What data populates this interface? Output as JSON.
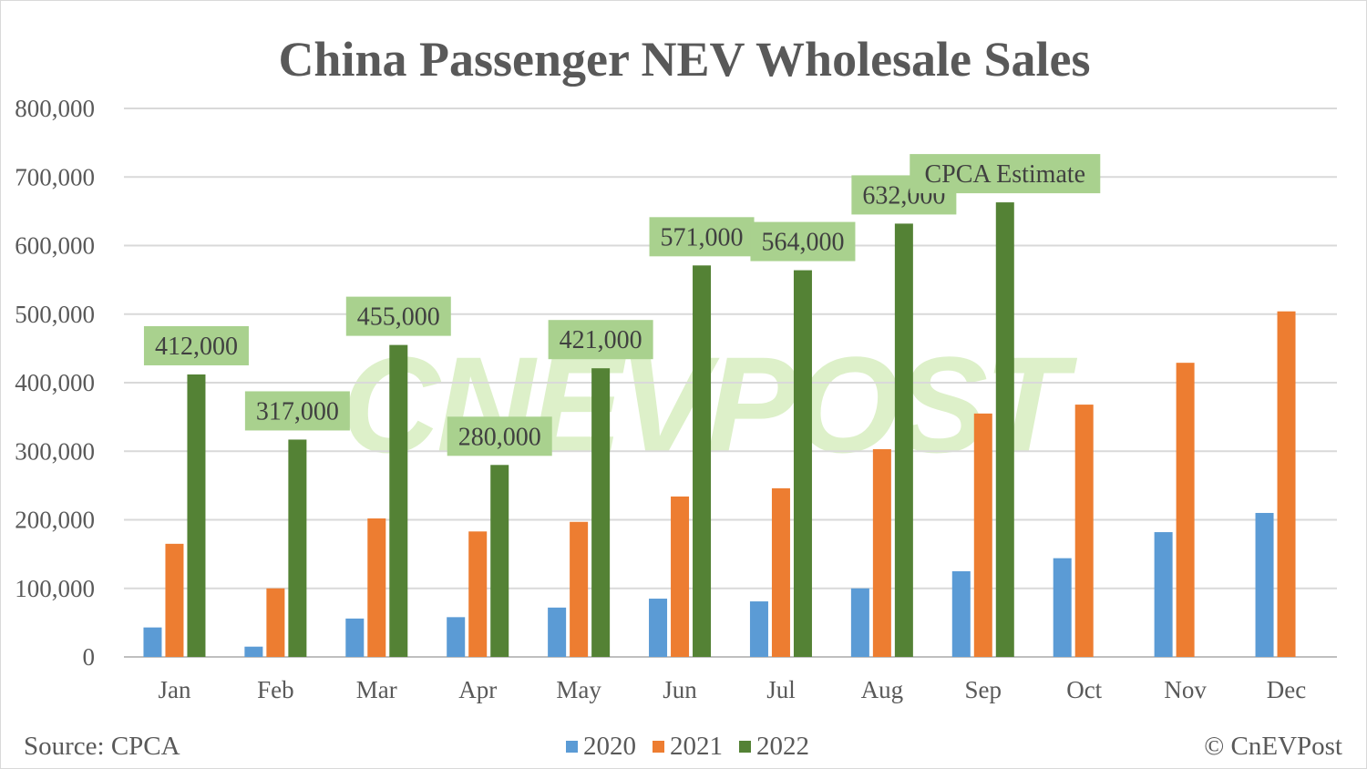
{
  "chart_data": {
    "type": "bar",
    "title": "China Passenger NEV Wholesale Sales",
    "categories": [
      "Jan",
      "Feb",
      "Mar",
      "Apr",
      "May",
      "Jun",
      "Jul",
      "Aug",
      "Sep",
      "Oct",
      "Nov",
      "Dec"
    ],
    "ylim": [
      0,
      800000
    ],
    "yticks": [
      "0",
      "100,000",
      "200,000",
      "300,000",
      "400,000",
      "500,000",
      "600,000",
      "700,000",
      "800,000"
    ],
    "grid": true,
    "legend_position": "bottom",
    "series": [
      {
        "name": "2020",
        "color": "#5b9bd5",
        "values": [
          43000,
          15000,
          56000,
          58000,
          72000,
          85000,
          81000,
          100000,
          125000,
          144000,
          182000,
          210000
        ]
      },
      {
        "name": "2021",
        "color": "#ed7d31",
        "values": [
          165000,
          100000,
          202000,
          183000,
          197000,
          234000,
          246000,
          303000,
          355000,
          368000,
          429000,
          504000
        ]
      },
      {
        "name": "2022",
        "color": "#548235",
        "values": [
          412000,
          317000,
          455000,
          280000,
          421000,
          571000,
          564000,
          632000,
          663000,
          null,
          null,
          null
        ]
      }
    ],
    "data_labels": [
      "412,000",
      "317,000",
      "455,000",
      "280,000",
      "421,000",
      "571,000",
      "564,000",
      "632,000",
      "CPCA Estimate"
    ],
    "label_box_color": "#a9d18e",
    "source": "Source: CPCA",
    "credit": "© CnEVPost",
    "watermark": "CNEVPOST"
  }
}
